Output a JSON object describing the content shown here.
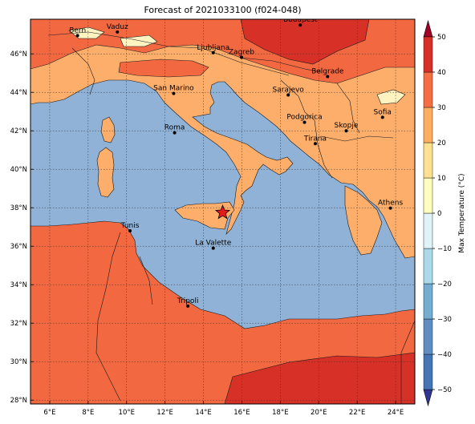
{
  "map": {
    "title": "Forecast of 2021033100 (f024-048)",
    "lon_range": [
      5,
      25
    ],
    "lat_range": [
      27.8,
      47.8
    ],
    "lon_ticks": [
      "6°E",
      "8°E",
      "10°E",
      "12°E",
      "14°E",
      "16°E",
      "18°E",
      "20°E",
      "22°E",
      "24°E"
    ],
    "lat_ticks": [
      "28°N",
      "30°N",
      "32°N",
      "34°N",
      "36°N",
      "38°N",
      "40°N",
      "42°N",
      "44°N",
      "46°N"
    ],
    "gridlines": true,
    "colors": {
      "sea": "#8fb2d6",
      "land_0_10": "#fff3c2",
      "land_10_20": "#fdae6b",
      "land_20_30": "#f26841",
      "land_30_40": "#d73027",
      "border": "#1a1a1a"
    },
    "cities": [
      {
        "name": "Bern",
        "lon": 7.45,
        "lat": 46.95
      },
      {
        "name": "Vaduz",
        "lon": 9.52,
        "lat": 47.14
      },
      {
        "name": "Budapest",
        "lon": 19.04,
        "lat": 47.5
      },
      {
        "name": "Ljubljana",
        "lon": 14.51,
        "lat": 46.06
      },
      {
        "name": "Zagreb",
        "lon": 15.98,
        "lat": 45.82
      },
      {
        "name": "Belgrade",
        "lon": 20.46,
        "lat": 44.82
      },
      {
        "name": "San Marino",
        "lon": 12.45,
        "lat": 43.94
      },
      {
        "name": "Sarajevo",
        "lon": 18.41,
        "lat": 43.86
      },
      {
        "name": "Sofia",
        "lon": 23.32,
        "lat": 42.7
      },
      {
        "name": "Podgorica",
        "lon": 19.26,
        "lat": 42.44
      },
      {
        "name": "Skopje",
        "lon": 21.43,
        "lat": 42.0
      },
      {
        "name": "Roma",
        "lon": 12.5,
        "lat": 41.9
      },
      {
        "name": "Tirana",
        "lon": 19.82,
        "lat": 41.33
      },
      {
        "name": "Athens",
        "lon": 23.73,
        "lat": 37.98
      },
      {
        "name": "Tunis",
        "lon": 10.18,
        "lat": 36.8
      },
      {
        "name": "La Valette",
        "lon": 14.51,
        "lat": 35.9
      },
      {
        "name": "Tripoli",
        "lon": 13.19,
        "lat": 32.89
      }
    ],
    "marker": {
      "symbol": "star",
      "lon": 15.0,
      "lat": 37.75,
      "color": "#e41a1c"
    }
  },
  "colorbar": {
    "label": "Max Temperature (°C)",
    "ticks": [
      -50,
      -40,
      -30,
      -20,
      -10,
      0,
      10,
      20,
      30,
      40,
      50
    ],
    "colors": [
      "#313695",
      "#4575b4",
      "#5f8fc2",
      "#74add1",
      "#abd9e9",
      "#e0f3f8",
      "#fffebe",
      "#fee090",
      "#fdae61",
      "#f46d43",
      "#d73027",
      "#a50026"
    ]
  }
}
